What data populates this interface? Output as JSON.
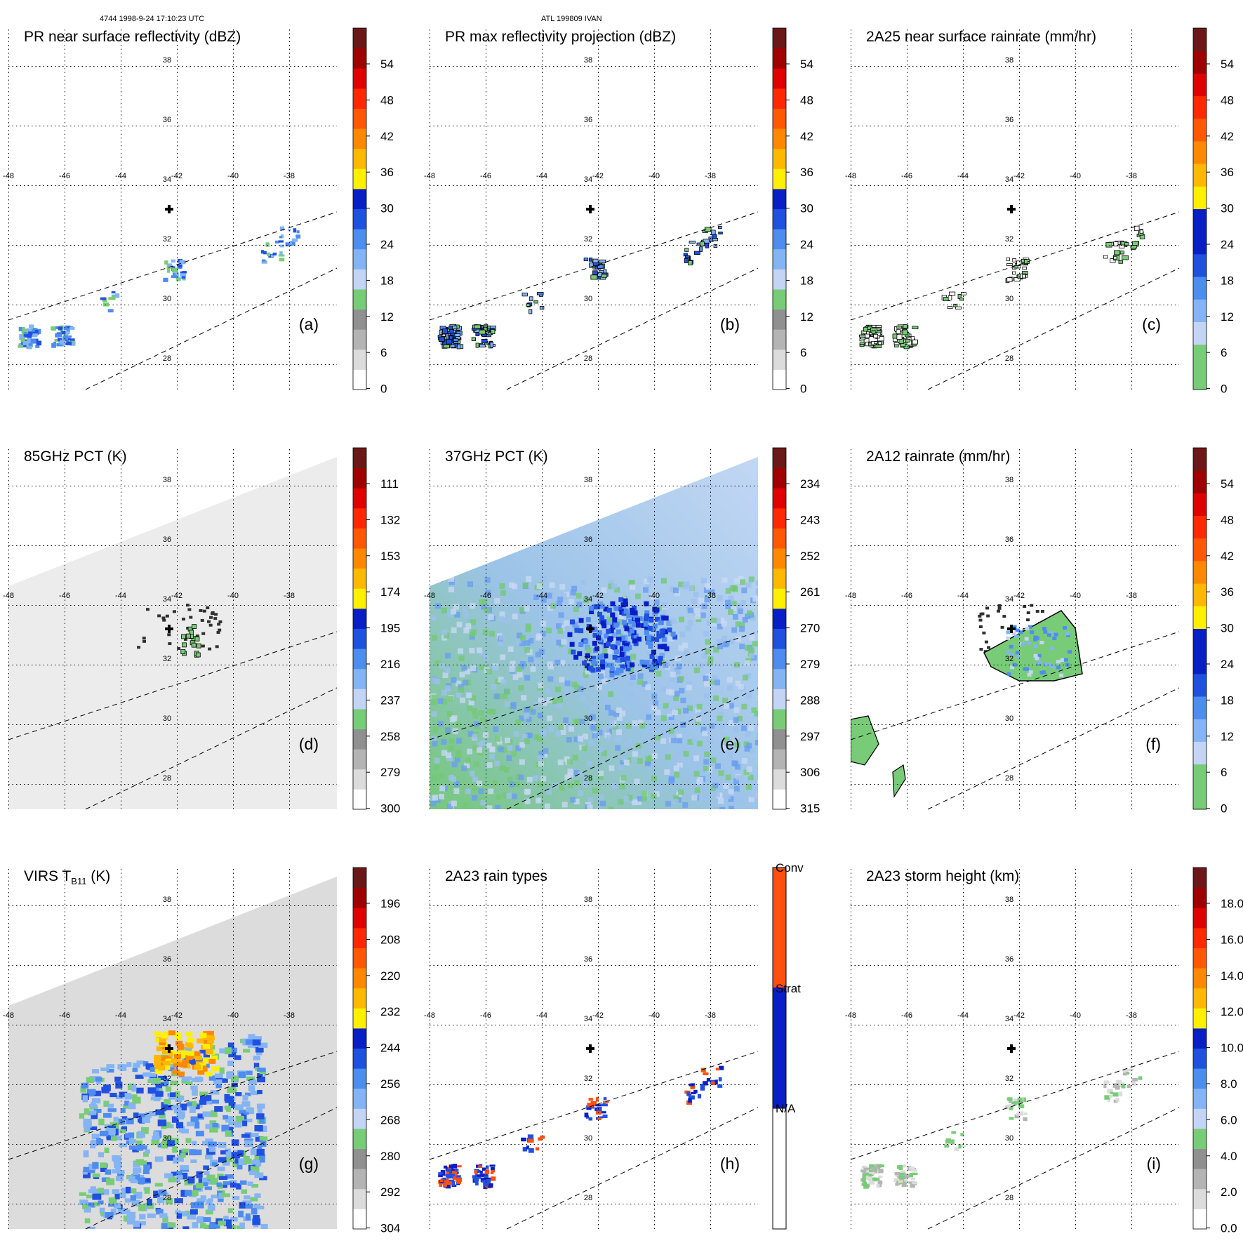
{
  "header": {
    "orbit_label": "4744 1998-9-24 17:10:23 UTC",
    "storm_label": "ATL 199809 IVAN"
  },
  "map": {
    "lon_labels": [
      "-48",
      "-46",
      "-44",
      "-42",
      "-40",
      "-38"
    ],
    "lat_labels": [
      "38",
      "36",
      "34",
      "32",
      "30",
      "28"
    ],
    "center_marker": {
      "lon": -42.1,
      "lat": 33.0,
      "symbol": "plus"
    }
  },
  "colors": {
    "green": "#70cc70",
    "grid": "#000000"
  },
  "chart_data": [
    {
      "type": "heatmap",
      "title": "PR near surface reflectivity (dBZ)",
      "panel_label": "(a)",
      "colorbar": {
        "ticks": [
          "54",
          "48",
          "42",
          "36",
          "30",
          "24",
          "18",
          "12",
          "6",
          "0"
        ],
        "bands": [
          "#ffffff",
          "#dcdcdc",
          "#b4b4b4",
          "#909090",
          "#78cc78",
          "#c4d4f4",
          "#84b4f4",
          "#4e8cf0",
          "#2050e0",
          "#0a1ec8",
          "#fff000",
          "#ffb800",
          "#ff8800",
          "#ff5800",
          "#ff2800",
          "#e00000",
          "#a00000",
          "#6a1818"
        ]
      },
      "swath": "narrow",
      "fill": "none",
      "cells": "scattered reflectivity echoes"
    },
    {
      "type": "heatmap",
      "title": "PR max reflectivity projection (dBZ)",
      "panel_label": "(b)",
      "colorbar": {
        "ticks": [
          "54",
          "48",
          "42",
          "36",
          "30",
          "24",
          "18",
          "12",
          "6",
          "0"
        ],
        "bands": [
          "#ffffff",
          "#dcdcdc",
          "#b4b4b4",
          "#909090",
          "#78cc78",
          "#c4d4f4",
          "#84b4f4",
          "#4e8cf0",
          "#2050e0",
          "#0a1ec8",
          "#fff000",
          "#ffb800",
          "#ff8800",
          "#ff5800",
          "#ff2800",
          "#e00000",
          "#a00000",
          "#6a1818"
        ]
      },
      "swath": "narrow",
      "fill": "none",
      "cells": "contoured echoes"
    },
    {
      "type": "heatmap",
      "title": "2A25 near surface rainrate (mm/hr)",
      "panel_label": "(c)",
      "colorbar": {
        "ticks": [
          "54",
          "48",
          "42",
          "36",
          "30",
          "24",
          "18",
          "12",
          "6",
          "0"
        ],
        "bands": [
          "#78cc78",
          "#78cc78",
          "#c4d4f4",
          "#84b4f4",
          "#4e8cf0",
          "#2050e0",
          "#0a1ec8",
          "#0a1ec8",
          "#fff000",
          "#ffb800",
          "#ff8800",
          "#ff5800",
          "#ff2800",
          "#e00000",
          "#a00000",
          "#6a1818"
        ]
      },
      "swath": "narrow",
      "fill": "none",
      "cells": "light rain contours"
    },
    {
      "type": "heatmap",
      "title": "85GHz PCT (K)",
      "panel_label": "(d)",
      "colorbar": {
        "ticks": [
          "111",
          "132",
          "153",
          "174",
          "195",
          "216",
          "237",
          "258",
          "279",
          "300"
        ],
        "bands": [
          "#ffffff",
          "#dcdcdc",
          "#b4b4b4",
          "#909090",
          "#78cc78",
          "#c4d4f4",
          "#84b4f4",
          "#4e8cf0",
          "#2050e0",
          "#0a1ec8",
          "#fff000",
          "#ffb800",
          "#ff8800",
          "#ff5800",
          "#ff2800",
          "#e00000",
          "#a00000",
          "#6a1818"
        ]
      },
      "swath": "wide",
      "fill": "#ececec",
      "cells": "scattered low-PCT cells"
    },
    {
      "type": "heatmap",
      "title": "37GHz PCT (K)",
      "panel_label": "(e)",
      "colorbar": {
        "ticks": [
          "234",
          "243",
          "252",
          "261",
          "270",
          "279",
          "288",
          "297",
          "306",
          "315"
        ],
        "bands": [
          "#ffffff",
          "#dcdcdc",
          "#b4b4b4",
          "#909090",
          "#78cc78",
          "#c4d4f4",
          "#84b4f4",
          "#4e8cf0",
          "#2050e0",
          "#0a1ec8",
          "#fff000",
          "#ffb800",
          "#ff8800",
          "#ff5800",
          "#ff2800",
          "#e00000",
          "#a00000",
          "#6a1818"
        ]
      },
      "swath": "wide",
      "fill": "gradient",
      "cells": "blue core near -41,32.5; green south-west"
    },
    {
      "type": "heatmap",
      "title": "2A12 rainrate (mm/hr)",
      "panel_label": "(f)",
      "colorbar": {
        "ticks": [
          "54",
          "48",
          "42",
          "36",
          "30",
          "24",
          "18",
          "12",
          "6",
          "0"
        ],
        "bands": [
          "#78cc78",
          "#78cc78",
          "#c4d4f4",
          "#84b4f4",
          "#4e8cf0",
          "#2050e0",
          "#0a1ec8",
          "#0a1ec8",
          "#fff000",
          "#ffb800",
          "#ff8800",
          "#ff5800",
          "#ff2800",
          "#e00000",
          "#a00000",
          "#6a1818"
        ]
      },
      "swath": "wide",
      "fill": "none",
      "cells": "rain area near -41,32.5"
    },
    {
      "type": "heatmap",
      "title": "VIRS T",
      "title_sub": "B11",
      "title_suffix": " (K)",
      "panel_label": "(g)",
      "colorbar": {
        "ticks": [
          "196",
          "208",
          "220",
          "232",
          "244",
          "256",
          "268",
          "280",
          "292",
          "304"
        ],
        "bands": [
          "#ffffff",
          "#dcdcdc",
          "#b4b4b4",
          "#909090",
          "#78cc78",
          "#c4d4f4",
          "#84b4f4",
          "#4e8cf0",
          "#2050e0",
          "#0a1ec8",
          "#fff000",
          "#ffb800",
          "#ff8800",
          "#ff5800",
          "#ff2800",
          "#e00000",
          "#a00000",
          "#6a1818"
        ]
      },
      "swath": "wide",
      "fill": "#dcdcdc",
      "cells": "cold cloud tops orange near -42,33; blue bands"
    },
    {
      "type": "heatmap",
      "title": "2A23 rain types",
      "panel_label": "(h)",
      "colorbar": {
        "categories": [
          "Conv",
          "Strat",
          "N/A"
        ],
        "colors": [
          "#ff5010",
          "#0a1ec8",
          "#ffffff"
        ]
      },
      "swath": "narrow",
      "fill": "none",
      "cells": "conv/strat pixels"
    },
    {
      "type": "heatmap",
      "title": "2A23 storm height (km)",
      "panel_label": "(i)",
      "colorbar": {
        "ticks": [
          "18.0",
          "16.0",
          "14.0",
          "12.0",
          "10.0",
          "8.0",
          "6.0",
          "4.0",
          "2.0",
          "0.0"
        ],
        "bands": [
          "#ffffff",
          "#dcdcdc",
          "#b4b4b4",
          "#909090",
          "#78cc78",
          "#c4d4f4",
          "#84b4f4",
          "#4e8cf0",
          "#2050e0",
          "#0a1ec8",
          "#fff000",
          "#ffb800",
          "#ff8800",
          "#ff5800",
          "#ff2800",
          "#e00000",
          "#a00000",
          "#6a1818"
        ]
      },
      "swath": "narrow",
      "fill": "none",
      "cells": "low storm heights"
    }
  ]
}
